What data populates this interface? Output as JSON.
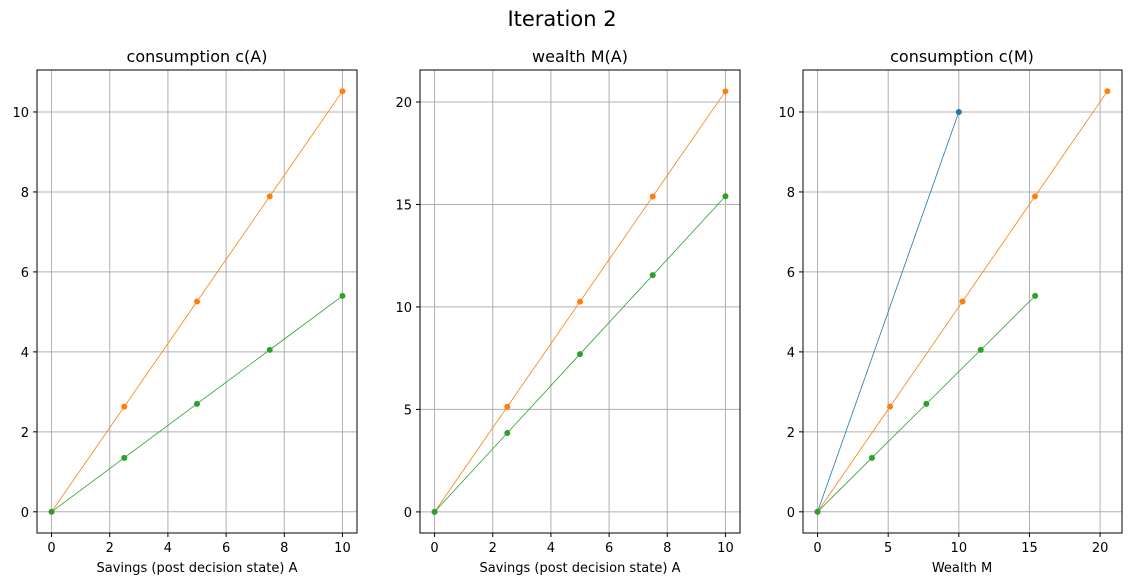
{
  "figure": {
    "suptitle": "Iteration 2"
  },
  "chart_data": [
    {
      "type": "line",
      "title": "consumption c(A)",
      "xlabel": "Savings (post decision state) A",
      "ylabel": "",
      "xlim": [
        -0.5,
        10.5
      ],
      "ylim": [
        -0.53,
        11.05
      ],
      "xticks": [
        0,
        2,
        4,
        6,
        8,
        10
      ],
      "yticks": [
        0,
        2,
        4,
        6,
        8,
        10
      ],
      "grid": true,
      "series": [
        {
          "color": "#ff7f0e",
          "x": [
            0,
            2.5,
            5,
            7.5,
            10
          ],
          "y": [
            0,
            2.63,
            5.26,
            7.89,
            10.52
          ]
        },
        {
          "color": "#2ca02c",
          "x": [
            0,
            2.5,
            5,
            7.5,
            10
          ],
          "y": [
            0,
            1.35,
            2.7,
            4.05,
            5.4
          ]
        }
      ]
    },
    {
      "type": "line",
      "title": "wealth M(A)",
      "xlabel": "Savings (post decision state) A",
      "ylabel": "",
      "xlim": [
        -0.5,
        10.5
      ],
      "ylim": [
        -1.03,
        21.56
      ],
      "xticks": [
        0,
        2,
        4,
        6,
        8,
        10
      ],
      "yticks": [
        0,
        5,
        10,
        15,
        20
      ],
      "grid": true,
      "series": [
        {
          "color": "#ff7f0e",
          "x": [
            0,
            2.5,
            5,
            7.5,
            10
          ],
          "y": [
            0,
            5.13,
            10.26,
            15.39,
            20.52
          ]
        },
        {
          "color": "#2ca02c",
          "x": [
            0,
            2.5,
            5,
            7.5,
            10
          ],
          "y": [
            0,
            3.85,
            7.7,
            11.55,
            15.4
          ]
        }
      ]
    },
    {
      "type": "line",
      "title": "consumption c(M)",
      "xlabel": "Wealth M",
      "ylabel": "",
      "xlim": [
        -1.03,
        21.55
      ],
      "ylim": [
        -0.53,
        11.05
      ],
      "xticks": [
        0,
        5,
        10,
        15,
        20
      ],
      "yticks": [
        0,
        2,
        4,
        6,
        8,
        10
      ],
      "grid": true,
      "series": [
        {
          "color": "#1f77b4",
          "x": [
            0,
            10
          ],
          "y": [
            0,
            10
          ]
        },
        {
          "color": "#ff7f0e",
          "x": [
            0,
            5.13,
            10.26,
            15.39,
            20.52
          ],
          "y": [
            0,
            2.63,
            5.26,
            7.89,
            10.52
          ]
        },
        {
          "color": "#2ca02c",
          "x": [
            0,
            3.85,
            7.7,
            11.55,
            15.4
          ],
          "y": [
            0,
            1.35,
            2.7,
            4.05,
            5.4
          ]
        }
      ]
    }
  ]
}
